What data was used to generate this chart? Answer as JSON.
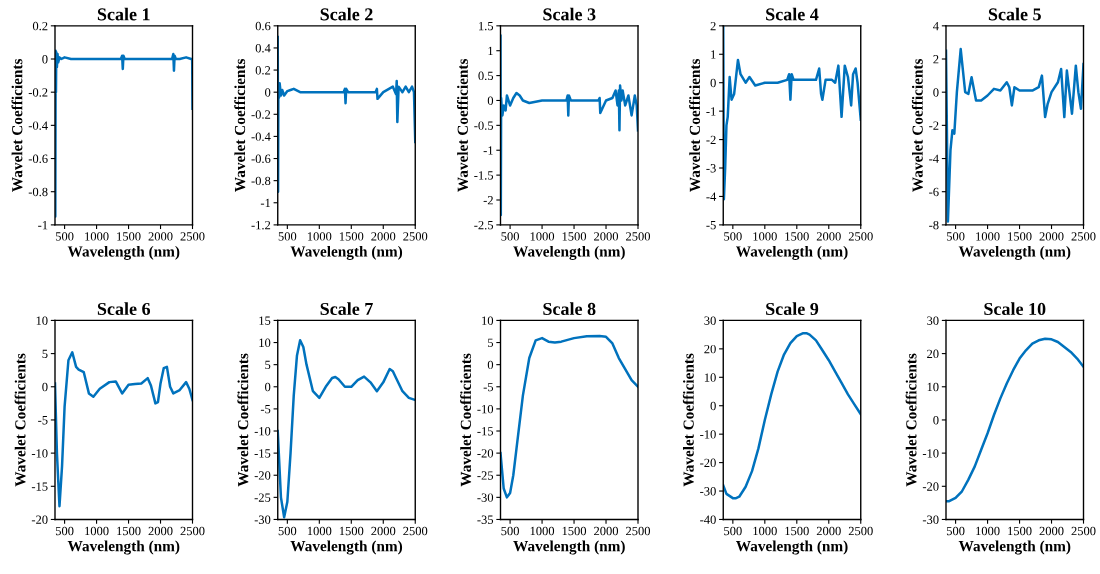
{
  "chart_data": [
    {
      "type": "line",
      "title": "Scale 1",
      "xlabel": "Wavelength (nm)",
      "ylabel": "Wavelet Coefficients",
      "color": "#0072bd",
      "xlim": [
        350,
        2500
      ],
      "xticks": [
        500,
        1000,
        1500,
        2000,
        2500
      ],
      "ylim": [
        -1,
        0.2
      ],
      "yticks": [
        -1,
        -0.8,
        -0.6,
        -0.4,
        -0.2,
        0,
        0.2
      ],
      "x": [
        350,
        355,
        360,
        365,
        370,
        380,
        390,
        400,
        420,
        450,
        500,
        600,
        800,
        1000,
        1380,
        1400,
        1410,
        1420,
        1440,
        1600,
        1900,
        2180,
        2200,
        2210,
        2220,
        2240,
        2300,
        2400,
        2480,
        2495,
        2500
      ],
      "values": [
        0,
        -0.95,
        0.05,
        -0.2,
        0.04,
        -0.05,
        0.03,
        -0.02,
        0.01,
        0,
        0.01,
        0,
        0,
        0,
        0,
        0.02,
        -0.06,
        0.02,
        0,
        0,
        0,
        0,
        0.03,
        -0.07,
        0.02,
        0,
        0,
        0.01,
        0,
        0,
        -0.3
      ]
    },
    {
      "type": "line",
      "title": "Scale 2",
      "xlabel": "Wavelength (nm)",
      "ylabel": "Wavelet Coefficients",
      "color": "#0072bd",
      "xlim": [
        350,
        2500
      ],
      "xticks": [
        500,
        1000,
        1500,
        2000,
        2500
      ],
      "ylim": [
        -1.2,
        0.6
      ],
      "yticks": [
        -1.2,
        -1,
        -0.8,
        -0.6,
        -0.4,
        -0.2,
        0,
        0.2,
        0.4,
        0.6
      ],
      "x": [
        350,
        355,
        360,
        370,
        380,
        400,
        420,
        450,
        500,
        550,
        600,
        700,
        1000,
        1380,
        1400,
        1410,
        1420,
        1450,
        1600,
        1880,
        1900,
        1910,
        2000,
        2150,
        2200,
        2210,
        2220,
        2240,
        2300,
        2350,
        2400,
        2450,
        2480,
        2500
      ],
      "values": [
        0.5,
        -0.9,
        0.08,
        -0.05,
        0.08,
        -0.03,
        0.02,
        -0.03,
        0.01,
        0.02,
        0.03,
        0,
        0,
        0,
        0.03,
        -0.1,
        0.03,
        0,
        0,
        0,
        0.03,
        -0.06,
        0,
        0.05,
        -0.02,
        0.1,
        -0.27,
        0.05,
        0,
        0.05,
        0,
        0.05,
        0,
        -0.45
      ]
    },
    {
      "type": "line",
      "title": "Scale 3",
      "xlabel": "Wavelength (nm)",
      "ylabel": "Wavelet Coefficients",
      "color": "#0072bd",
      "xlim": [
        350,
        2500
      ],
      "xticks": [
        500,
        1000,
        1500,
        2000,
        2500
      ],
      "ylim": [
        -2.5,
        1.5
      ],
      "yticks": [
        -2.5,
        -2,
        -1.5,
        -1,
        -0.5,
        0,
        0.5,
        1,
        1.5
      ],
      "x": [
        350,
        355,
        360,
        370,
        380,
        400,
        430,
        450,
        500,
        550,
        600,
        650,
        700,
        800,
        1000,
        1380,
        1400,
        1410,
        1420,
        1450,
        1600,
        1880,
        1900,
        1910,
        2000,
        2100,
        2150,
        2180,
        2200,
        2210,
        2220,
        2240,
        2260,
        2300,
        2350,
        2400,
        2450,
        2480,
        2500
      ],
      "values": [
        1.3,
        -2.3,
        0.05,
        -0.2,
        -0.3,
        -0.1,
        -0.2,
        0.1,
        -0.1,
        0.05,
        0.15,
        0.1,
        0,
        -0.05,
        0,
        0,
        0.1,
        -0.3,
        0.1,
        0,
        0,
        0,
        0.05,
        -0.25,
        0,
        0.05,
        0.2,
        -0.1,
        0.2,
        -0.6,
        0.3,
        0,
        0.2,
        -0.1,
        0.1,
        -0.3,
        0.1,
        -0.1,
        -0.6
      ]
    },
    {
      "type": "line",
      "title": "Scale 4",
      "xlabel": "Wavelength (nm)",
      "ylabel": "Wavelet Coefficients",
      "color": "#0072bd",
      "xlim": [
        350,
        2500
      ],
      "xticks": [
        500,
        1000,
        1500,
        2000,
        2500
      ],
      "ylim": [
        -5,
        2
      ],
      "yticks": [
        -5,
        -4,
        -3,
        -2,
        -1,
        0,
        1,
        2
      ],
      "x": [
        350,
        360,
        380,
        400,
        420,
        450,
        480,
        520,
        580,
        620,
        700,
        760,
        850,
        1000,
        1200,
        1350,
        1380,
        1400,
        1420,
        1450,
        1600,
        1800,
        1850,
        1880,
        1900,
        1950,
        2050,
        2100,
        2150,
        2200,
        2250,
        2300,
        2350,
        2380,
        2420,
        2450,
        2500
      ],
      "values": [
        2,
        -4.1,
        -3,
        -1.5,
        -1.2,
        0.2,
        -0.6,
        -0.4,
        0.8,
        0.3,
        0,
        0.2,
        -0.1,
        0,
        0,
        0.1,
        0.3,
        -0.6,
        0.3,
        0.1,
        0.1,
        0.1,
        0.5,
        -0.4,
        -0.6,
        0.1,
        0.1,
        0,
        0.6,
        -1.2,
        0.6,
        0.2,
        -0.8,
        0.3,
        0.5,
        0,
        -1.3
      ]
    },
    {
      "type": "line",
      "title": "Scale 5",
      "xlabel": "Wavelength (nm)",
      "ylabel": "Wavelet Coefficients",
      "color": "#0072bd",
      "xlim": [
        350,
        2500
      ],
      "xticks": [
        500,
        1000,
        1500,
        2000,
        2500
      ],
      "ylim": [
        -8,
        4
      ],
      "yticks": [
        -8,
        -6,
        -4,
        -2,
        0,
        2,
        4
      ],
      "x": [
        350,
        380,
        420,
        450,
        480,
        520,
        580,
        650,
        700,
        750,
        820,
        900,
        1000,
        1100,
        1200,
        1300,
        1340,
        1380,
        1420,
        1500,
        1700,
        1800,
        1850,
        1900,
        1940,
        2000,
        2100,
        2150,
        2200,
        2240,
        2280,
        2320,
        2380,
        2420,
        2460,
        2500
      ],
      "values": [
        2.5,
        -7.8,
        -3.5,
        -2.3,
        -2.5,
        0,
        2.6,
        0,
        -0.1,
        0.9,
        -0.5,
        -0.5,
        -0.2,
        0.2,
        0.1,
        0.6,
        0.3,
        -0.8,
        0.3,
        0.1,
        0.1,
        0.3,
        1,
        -1.5,
        -0.7,
        0,
        0.6,
        1.4,
        -1.5,
        1.3,
        0,
        -1.3,
        1.6,
        0,
        -1,
        1.7
      ]
    },
    {
      "type": "line",
      "title": "Scale 6",
      "xlabel": "Wavelength (nm)",
      "ylabel": "Wavelet Coefficients",
      "color": "#0072bd",
      "xlim": [
        350,
        2500
      ],
      "xticks": [
        500,
        1000,
        1500,
        2000,
        2500
      ],
      "ylim": [
        -20,
        10
      ],
      "yticks": [
        -20,
        -15,
        -10,
        -5,
        0,
        5,
        10
      ],
      "x": [
        350,
        380,
        420,
        460,
        500,
        560,
        620,
        680,
        720,
        800,
        880,
        950,
        1050,
        1200,
        1300,
        1400,
        1500,
        1600,
        1700,
        1800,
        1850,
        1920,
        1960,
        2000,
        2050,
        2100,
        2150,
        2200,
        2300,
        2400,
        2450,
        2500
      ],
      "values": [
        0.5,
        -10,
        -18,
        -12,
        -3,
        4,
        5.2,
        3,
        2.6,
        2.2,
        -1,
        -1.5,
        -0.3,
        0.7,
        0.8,
        -1,
        0.3,
        0.4,
        0.5,
        1.3,
        0.2,
        -2.5,
        -2.3,
        0.5,
        2.8,
        3,
        0,
        -1,
        -0.5,
        0.7,
        -0.3,
        -2
      ]
    },
    {
      "type": "line",
      "title": "Scale 7",
      "xlabel": "Wavelength (nm)",
      "ylabel": "Wavelet Coefficients",
      "color": "#0072bd",
      "xlim": [
        350,
        2500
      ],
      "xticks": [
        500,
        1000,
        1500,
        2000,
        2500
      ],
      "ylim": [
        -30,
        15
      ],
      "yticks": [
        -30,
        -25,
        -20,
        -15,
        -10,
        -5,
        0,
        5,
        10,
        15
      ],
      "x": [
        350,
        400,
        450,
        500,
        550,
        600,
        650,
        700,
        750,
        800,
        900,
        1000,
        1100,
        1200,
        1250,
        1300,
        1400,
        1500,
        1600,
        1700,
        1800,
        1900,
        2000,
        2100,
        2150,
        2200,
        2300,
        2400,
        2500
      ],
      "values": [
        -10,
        -25,
        -29.5,
        -26,
        -15,
        -2,
        7,
        10.5,
        9,
        5,
        -1,
        -2.5,
        0,
        2,
        2.2,
        1.7,
        0,
        0,
        1.5,
        2.3,
        1,
        -1,
        1,
        4,
        3.5,
        2,
        -1,
        -2.5,
        -3
      ]
    },
    {
      "type": "line",
      "title": "Scale 8",
      "xlabel": "Wavelength (nm)",
      "ylabel": "Wavelet Coefficients",
      "color": "#0072bd",
      "xlim": [
        350,
        2500
      ],
      "xticks": [
        500,
        1000,
        1500,
        2000,
        2500
      ],
      "ylim": [
        -35,
        10
      ],
      "yticks": [
        -35,
        -30,
        -25,
        -20,
        -15,
        -10,
        -5,
        0,
        5,
        10
      ],
      "x": [
        350,
        400,
        450,
        500,
        550,
        600,
        700,
        800,
        900,
        1000,
        1100,
        1200,
        1300,
        1500,
        1700,
        1900,
        2000,
        2100,
        2200,
        2300,
        2400,
        2500
      ],
      "values": [
        -20,
        -28,
        -30,
        -29,
        -25,
        -19,
        -7,
        1.5,
        5.5,
        6,
        5.2,
        5,
        5.2,
        6,
        6.4,
        6.5,
        6.3,
        4.8,
        1.5,
        -1,
        -3.5,
        -5
      ]
    },
    {
      "type": "line",
      "title": "Scale 9",
      "xlabel": "Wavelength (nm)",
      "ylabel": "Wavelet Coefficients",
      "color": "#0072bd",
      "xlim": [
        350,
        2500
      ],
      "xticks": [
        500,
        1000,
        1500,
        2000,
        2500
      ],
      "ylim": [
        -40,
        30
      ],
      "yticks": [
        -40,
        -30,
        -20,
        -10,
        0,
        10,
        20,
        30
      ],
      "x": [
        350,
        400,
        500,
        550,
        600,
        700,
        800,
        900,
        1000,
        1100,
        1200,
        1300,
        1400,
        1500,
        1600,
        1650,
        1700,
        1800,
        1900,
        2000,
        2100,
        2200,
        2300,
        2400,
        2500
      ],
      "values": [
        -28,
        -31,
        -32.5,
        -32.5,
        -32,
        -28.5,
        -23,
        -15,
        -5,
        4,
        12,
        18,
        22,
        24.5,
        25.5,
        25.5,
        25,
        23,
        19.5,
        16,
        12,
        8,
        4,
        0.5,
        -3
      ]
    },
    {
      "type": "line",
      "title": "Scale 10",
      "xlabel": "Wavelength (nm)",
      "ylabel": "Wavelet Coefficients",
      "color": "#0072bd",
      "xlim": [
        350,
        2500
      ],
      "xticks": [
        500,
        1000,
        1500,
        2000,
        2500
      ],
      "ylim": [
        -30,
        30
      ],
      "yticks": [
        -30,
        -20,
        -10,
        0,
        10,
        20,
        30
      ],
      "x": [
        350,
        400,
        500,
        600,
        700,
        800,
        900,
        1000,
        1100,
        1200,
        1300,
        1400,
        1500,
        1600,
        1700,
        1800,
        1900,
        2000,
        2100,
        2200,
        2300,
        2400,
        2500
      ],
      "values": [
        -24.5,
        -24.5,
        -23.5,
        -21.5,
        -18,
        -14,
        -9,
        -4,
        1.5,
        6.5,
        11,
        15,
        18.5,
        21,
        23,
        24,
        24.5,
        24.3,
        23.5,
        22,
        20.5,
        18.5,
        16
      ]
    }
  ]
}
